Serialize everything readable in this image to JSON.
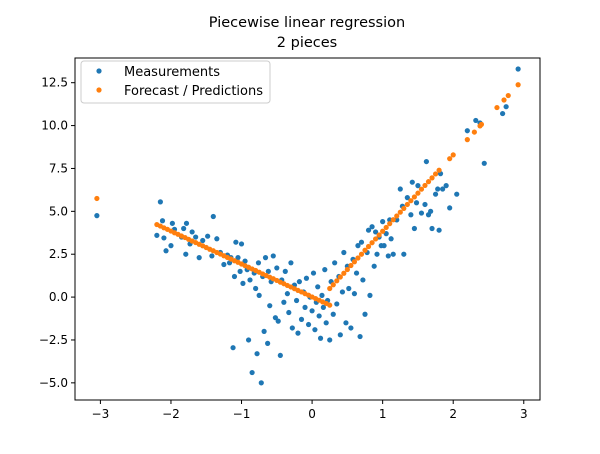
{
  "chart_data": {
    "type": "scatter",
    "title": "Piecewise linear regression",
    "subtitle": "2 pieces",
    "xlabel": "",
    "ylabel": "",
    "xlim": [
      -3.36,
      3.23
    ],
    "ylim": [
      -6.0,
      13.94
    ],
    "xticks": [
      -3,
      -2,
      -1,
      0,
      1,
      2,
      3
    ],
    "xtick_labels": [
      "−3",
      "−2",
      "−1",
      "0",
      "1",
      "2",
      "3"
    ],
    "yticks": [
      -5,
      -2.5,
      0,
      2.5,
      5,
      7.5,
      10,
      12.5
    ],
    "ytick_labels": [
      "−5.0",
      "−2.5",
      "0.0",
      "2.5",
      "5.0",
      "7.5",
      "10.0",
      "12.5"
    ],
    "grid": false,
    "legend_position": "top-left",
    "series": [
      {
        "name": "Measurements",
        "color": "#1f77b4",
        "points": [
          [
            -3.05,
            4.75
          ],
          [
            -2.2,
            3.6
          ],
          [
            -2.15,
            5.55
          ],
          [
            -2.12,
            4.45
          ],
          [
            -2.1,
            3.45
          ],
          [
            -2.07,
            2.7
          ],
          [
            -2.0,
            3.0
          ],
          [
            -1.98,
            4.3
          ],
          [
            -1.95,
            3.95
          ],
          [
            -1.85,
            3.5
          ],
          [
            -1.82,
            4.0
          ],
          [
            -1.79,
            2.5
          ],
          [
            -1.78,
            4.3
          ],
          [
            -1.73,
            3.1
          ],
          [
            -1.7,
            3.8
          ],
          [
            -1.65,
            3.5
          ],
          [
            -1.6,
            2.3
          ],
          [
            -1.55,
            3.3
          ],
          [
            -1.48,
            3.55
          ],
          [
            -1.42,
            2.4
          ],
          [
            -1.4,
            4.7
          ],
          [
            -1.35,
            3.4
          ],
          [
            -1.3,
            2.6
          ],
          [
            -1.25,
            1.9
          ],
          [
            -1.2,
            2.45
          ],
          [
            -1.17,
            2.0
          ],
          [
            -1.15,
            2.3
          ],
          [
            -1.12,
            -2.95
          ],
          [
            -1.1,
            1.2
          ],
          [
            -1.08,
            3.2
          ],
          [
            -1.05,
            2.3
          ],
          [
            -1.02,
            1.5
          ],
          [
            -1.0,
            3.1
          ],
          [
            -0.98,
            0.8
          ],
          [
            -0.95,
            2.1
          ],
          [
            -0.92,
            1.6
          ],
          [
            -0.9,
            -2.5
          ],
          [
            -0.88,
            1.0
          ],
          [
            -0.85,
            -4.4
          ],
          [
            -0.82,
            1.4
          ],
          [
            -0.8,
            0.5
          ],
          [
            -0.78,
            -3.3
          ],
          [
            -0.76,
            2.0
          ],
          [
            -0.75,
            0.1
          ],
          [
            -0.72,
            -5.0
          ],
          [
            -0.7,
            1.2
          ],
          [
            -0.68,
            -2.0
          ],
          [
            -0.66,
            2.3
          ],
          [
            -0.63,
            -2.7
          ],
          [
            -0.62,
            1.5
          ],
          [
            -0.6,
            -0.5
          ],
          [
            -0.58,
            0.9
          ],
          [
            -0.55,
            2.4
          ],
          [
            -0.52,
            -1.2
          ],
          [
            -0.5,
            1.7
          ],
          [
            -0.48,
            -1.4
          ],
          [
            -0.45,
            -3.4
          ],
          [
            -0.43,
            1.0
          ],
          [
            -0.4,
            -0.3
          ],
          [
            -0.38,
            1.5
          ],
          [
            -0.35,
            0.2
          ],
          [
            -0.33,
            -0.9
          ],
          [
            -0.3,
            2.0
          ],
          [
            -0.28,
            -1.8
          ],
          [
            -0.25,
            0.7
          ],
          [
            -0.22,
            -0.2
          ],
          [
            -0.2,
            -2.1
          ],
          [
            -0.18,
            0.9
          ],
          [
            -0.15,
            -1.3
          ],
          [
            -0.12,
            0.3
          ],
          [
            -0.1,
            -0.6
          ],
          [
            -0.08,
            1.1
          ],
          [
            -0.05,
            -1.6
          ],
          [
            -0.03,
            0.0
          ],
          [
            0.0,
            -0.8
          ],
          [
            0.02,
            1.4
          ],
          [
            0.04,
            -1.9
          ],
          [
            0.06,
            -0.3
          ],
          [
            0.08,
            0.6
          ],
          [
            0.1,
            -1.1
          ],
          [
            0.12,
            -2.4
          ],
          [
            0.14,
            0.1
          ],
          [
            0.16,
            -0.6
          ],
          [
            0.18,
            1.6
          ],
          [
            0.2,
            -1.5
          ],
          [
            0.22,
            -0.2
          ],
          [
            0.25,
            -2.5
          ],
          [
            0.27,
            0.9
          ],
          [
            0.3,
            -1.0
          ],
          [
            0.32,
            2.0
          ],
          [
            0.35,
            -0.4
          ],
          [
            0.38,
            1.2
          ],
          [
            0.4,
            -2.2
          ],
          [
            0.43,
            0.3
          ],
          [
            0.45,
            2.6
          ],
          [
            0.48,
            -1.5
          ],
          [
            0.5,
            1.8
          ],
          [
            0.52,
            0.5
          ],
          [
            0.55,
            -1.8
          ],
          [
            0.58,
            2.2
          ],
          [
            0.6,
            0.2
          ],
          [
            0.63,
            1.4
          ],
          [
            0.65,
            3.0
          ],
          [
            0.68,
            -2.3
          ],
          [
            0.7,
            3.2
          ],
          [
            0.72,
            1.0
          ],
          [
            0.75,
            -1.0
          ],
          [
            0.78,
            2.6
          ],
          [
            0.8,
            3.9
          ],
          [
            0.82,
            0.1
          ],
          [
            0.85,
            4.1
          ],
          [
            0.88,
            1.8
          ],
          [
            0.9,
            3.8
          ],
          [
            0.92,
            2.5
          ],
          [
            0.95,
            3.5
          ],
          [
            0.98,
            3.0
          ],
          [
            1.0,
            4.4
          ],
          [
            1.02,
            3.0
          ],
          [
            1.05,
            3.7
          ],
          [
            1.08,
            2.4
          ],
          [
            1.1,
            4.5
          ],
          [
            1.12,
            3.4
          ],
          [
            1.15,
            2.5
          ],
          [
            1.2,
            4.5
          ],
          [
            1.25,
            6.3
          ],
          [
            1.28,
            5.3
          ],
          [
            1.3,
            2.5
          ],
          [
            1.35,
            5.8
          ],
          [
            1.4,
            4.8
          ],
          [
            1.42,
            6.7
          ],
          [
            1.45,
            4.0
          ],
          [
            1.48,
            5.5
          ],
          [
            1.5,
            6.5
          ],
          [
            1.55,
            4.9
          ],
          [
            1.6,
            5.4
          ],
          [
            1.62,
            7.9
          ],
          [
            1.65,
            4.8
          ],
          [
            1.68,
            5.0
          ],
          [
            1.7,
            4.0
          ],
          [
            1.75,
            6.0
          ],
          [
            1.78,
            6.3
          ],
          [
            1.8,
            3.9
          ],
          [
            1.82,
            7.2
          ],
          [
            1.85,
            6.3
          ],
          [
            1.9,
            6.5
          ],
          [
            1.95,
            5.2
          ],
          [
            2.05,
            6.0
          ],
          [
            2.2,
            9.7
          ],
          [
            2.32,
            10.3
          ],
          [
            2.38,
            10.15
          ],
          [
            2.44,
            7.8
          ],
          [
            2.7,
            10.7
          ],
          [
            2.75,
            11.1
          ],
          [
            2.92,
            13.3
          ]
        ]
      },
      {
        "name": "Forecast / Predictions",
        "color": "#ff7f0e",
        "points": [
          [
            -3.05,
            5.75
          ],
          [
            -2.2,
            4.23
          ],
          [
            -2.15,
            4.14
          ],
          [
            -2.1,
            4.04
          ],
          [
            -2.05,
            3.95
          ],
          [
            -2.0,
            3.85
          ],
          [
            -1.95,
            3.75
          ],
          [
            -1.9,
            3.66
          ],
          [
            -1.85,
            3.56
          ],
          [
            -1.8,
            3.47
          ],
          [
            -1.75,
            3.37
          ],
          [
            -1.7,
            3.27
          ],
          [
            -1.65,
            3.18
          ],
          [
            -1.6,
            3.08
          ],
          [
            -1.55,
            2.99
          ],
          [
            -1.5,
            2.89
          ],
          [
            -1.45,
            2.79
          ],
          [
            -1.4,
            2.7
          ],
          [
            -1.35,
            2.6
          ],
          [
            -1.3,
            2.51
          ],
          [
            -1.25,
            2.41
          ],
          [
            -1.2,
            2.31
          ],
          [
            -1.15,
            2.22
          ],
          [
            -1.1,
            2.12
          ],
          [
            -1.05,
            2.03
          ],
          [
            -1.0,
            1.93
          ],
          [
            -0.95,
            1.83
          ],
          [
            -0.9,
            1.74
          ],
          [
            -0.85,
            1.64
          ],
          [
            -0.8,
            1.55
          ],
          [
            -0.75,
            1.45
          ],
          [
            -0.7,
            1.35
          ],
          [
            -0.65,
            1.26
          ],
          [
            -0.6,
            1.16
          ],
          [
            -0.55,
            1.07
          ],
          [
            -0.5,
            0.97
          ],
          [
            -0.45,
            0.87
          ],
          [
            -0.4,
            0.78
          ],
          [
            -0.35,
            0.68
          ],
          [
            -0.3,
            0.59
          ],
          [
            -0.25,
            0.49
          ],
          [
            -0.2,
            0.39
          ],
          [
            -0.15,
            0.3
          ],
          [
            -0.1,
            0.2
          ],
          [
            -0.05,
            0.11
          ],
          [
            0.0,
            0.01
          ],
          [
            0.05,
            -0.09
          ],
          [
            0.1,
            -0.18
          ],
          [
            0.15,
            -0.28
          ],
          [
            0.2,
            -0.37
          ],
          [
            0.25,
            -0.47
          ],
          [
            0.25,
            0.5
          ],
          [
            0.3,
            0.72
          ],
          [
            0.35,
            0.95
          ],
          [
            0.4,
            1.17
          ],
          [
            0.45,
            1.39
          ],
          [
            0.5,
            1.61
          ],
          [
            0.55,
            1.84
          ],
          [
            0.6,
            2.06
          ],
          [
            0.65,
            2.28
          ],
          [
            0.7,
            2.5
          ],
          [
            0.75,
            2.73
          ],
          [
            0.8,
            2.95
          ],
          [
            0.85,
            3.17
          ],
          [
            0.9,
            3.39
          ],
          [
            0.95,
            3.62
          ],
          [
            1.0,
            3.84
          ],
          [
            1.05,
            4.06
          ],
          [
            1.1,
            4.28
          ],
          [
            1.15,
            4.51
          ],
          [
            1.2,
            4.73
          ],
          [
            1.25,
            4.95
          ],
          [
            1.3,
            5.17
          ],
          [
            1.35,
            5.4
          ],
          [
            1.4,
            5.62
          ],
          [
            1.45,
            5.84
          ],
          [
            1.5,
            6.06
          ],
          [
            1.55,
            6.29
          ],
          [
            1.6,
            6.51
          ],
          [
            1.65,
            6.73
          ],
          [
            1.7,
            6.95
          ],
          [
            1.75,
            7.18
          ],
          [
            1.8,
            7.4
          ],
          [
            1.95,
            8.07
          ],
          [
            2.0,
            8.29
          ],
          [
            2.2,
            9.18
          ],
          [
            2.3,
            9.62
          ],
          [
            2.38,
            9.98
          ],
          [
            2.4,
            10.07
          ],
          [
            2.62,
            11.05
          ],
          [
            2.72,
            11.49
          ],
          [
            2.78,
            11.75
          ],
          [
            2.92,
            12.38
          ]
        ]
      }
    ]
  }
}
